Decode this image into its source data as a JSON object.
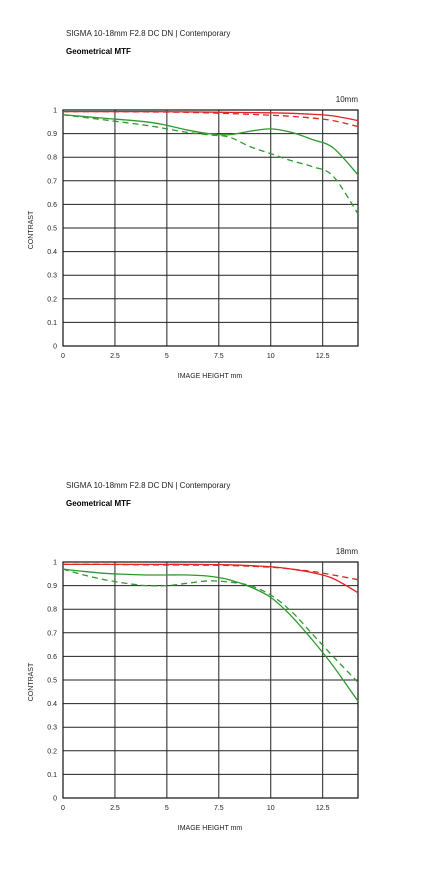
{
  "charts": [
    {
      "product": "SIGMA 10-18mm F2.8 DC DN | Contemporary",
      "subtitle": "Geometrical MTF",
      "focal": "10mm",
      "ylabel": "CONTRAST",
      "xlabel": "IMAGE HEIGHT   mm"
    },
    {
      "product": "SIGMA 10-18mm F2.8 DC DN | Contemporary",
      "subtitle": "Geometrical MTF",
      "focal": "18mm",
      "ylabel": "CONTRAST",
      "xlabel": "IMAGE HEIGHT   mm"
    }
  ],
  "chart_data": [
    {
      "type": "line",
      "title": "10mm",
      "xlabel": "IMAGE HEIGHT   mm",
      "ylabel": "CONTRAST",
      "xlim": [
        0,
        14.2
      ],
      "ylim": [
        0,
        1
      ],
      "xticks": [
        "0",
        "2.5",
        "5",
        "7.5",
        "10",
        "12.5"
      ],
      "xtick_values": [
        0,
        2.5,
        5,
        7.5,
        10,
        12.5
      ],
      "yticks": [
        "0",
        "0.1",
        "0.2",
        "0.3",
        "0.4",
        "0.5",
        "0.6",
        "0.7",
        "0.8",
        "0.9",
        "1"
      ],
      "ytick_values": [
        0,
        0.1,
        0.2,
        0.3,
        0.4,
        0.5,
        0.6,
        0.7,
        0.8,
        0.9,
        1
      ],
      "grid": true,
      "series": [
        {
          "color": "#e02424",
          "style": "solid",
          "x": [
            0,
            2,
            4,
            6,
            8,
            10,
            11,
            12,
            13,
            14.2
          ],
          "y": [
            0.993,
            0.993,
            0.993,
            0.992,
            0.99,
            0.988,
            0.986,
            0.982,
            0.975,
            0.955
          ]
        },
        {
          "color": "#e02424",
          "style": "dashed",
          "x": [
            0,
            2,
            4,
            6,
            8,
            10,
            11,
            12,
            13,
            14.2
          ],
          "y": [
            0.993,
            0.993,
            0.992,
            0.99,
            0.985,
            0.978,
            0.973,
            0.966,
            0.955,
            0.93
          ]
        },
        {
          "color": "#2e9a2e",
          "style": "solid",
          "x": [
            0,
            2,
            4,
            5,
            6,
            7,
            8,
            9,
            10,
            11,
            12,
            13,
            14.2
          ],
          "y": [
            0.98,
            0.965,
            0.95,
            0.935,
            0.915,
            0.9,
            0.895,
            0.91,
            0.92,
            0.905,
            0.875,
            0.84,
            0.725
          ]
        },
        {
          "color": "#2e9a2e",
          "style": "dashed",
          "x": [
            0,
            2,
            4,
            5,
            6,
            7,
            8,
            9,
            10,
            11,
            12,
            13,
            14.2
          ],
          "y": [
            0.98,
            0.958,
            0.935,
            0.92,
            0.905,
            0.895,
            0.885,
            0.845,
            0.815,
            0.785,
            0.76,
            0.72,
            0.56
          ]
        }
      ]
    },
    {
      "type": "line",
      "title": "18mm",
      "xlabel": "IMAGE HEIGHT   mm",
      "ylabel": "CONTRAST",
      "xlim": [
        0,
        14.2
      ],
      "ylim": [
        0,
        1
      ],
      "xticks": [
        "0",
        "2.5",
        "5",
        "7.5",
        "10",
        "12.5"
      ],
      "xtick_values": [
        0,
        2.5,
        5,
        7.5,
        10,
        12.5
      ],
      "yticks": [
        "0",
        "0.1",
        "0.2",
        "0.3",
        "0.4",
        "0.5",
        "0.6",
        "0.7",
        "0.8",
        "0.9",
        "1"
      ],
      "ytick_values": [
        0,
        0.1,
        0.2,
        0.3,
        0.4,
        0.5,
        0.6,
        0.7,
        0.8,
        0.9,
        1
      ],
      "grid": true,
      "series": [
        {
          "color": "#e02424",
          "style": "solid",
          "x": [
            0,
            2,
            4,
            6,
            8,
            10,
            11,
            12,
            13,
            14.2
          ],
          "y": [
            0.99,
            0.99,
            0.99,
            0.99,
            0.988,
            0.98,
            0.97,
            0.955,
            0.93,
            0.87
          ]
        },
        {
          "color": "#e02424",
          "style": "dashed",
          "x": [
            0,
            2,
            4,
            6,
            8,
            10,
            11,
            12,
            13,
            14.2
          ],
          "y": [
            0.99,
            0.99,
            0.988,
            0.987,
            0.985,
            0.978,
            0.97,
            0.96,
            0.945,
            0.925
          ]
        },
        {
          "color": "#2e9a2e",
          "style": "solid",
          "x": [
            0,
            1,
            2,
            3,
            4,
            5,
            6,
            7,
            8,
            9,
            10,
            11,
            12,
            13,
            14.2
          ],
          "y": [
            0.97,
            0.96,
            0.952,
            0.948,
            0.945,
            0.945,
            0.945,
            0.94,
            0.925,
            0.895,
            0.85,
            0.77,
            0.67,
            0.56,
            0.41
          ]
        },
        {
          "color": "#2e9a2e",
          "style": "dashed",
          "x": [
            0,
            1,
            2,
            3,
            4,
            5,
            6,
            7,
            8,
            9,
            10,
            11,
            12,
            13,
            14.2
          ],
          "y": [
            0.97,
            0.945,
            0.925,
            0.91,
            0.9,
            0.9,
            0.91,
            0.92,
            0.915,
            0.9,
            0.86,
            0.79,
            0.695,
            0.6,
            0.49
          ]
        }
      ]
    }
  ]
}
